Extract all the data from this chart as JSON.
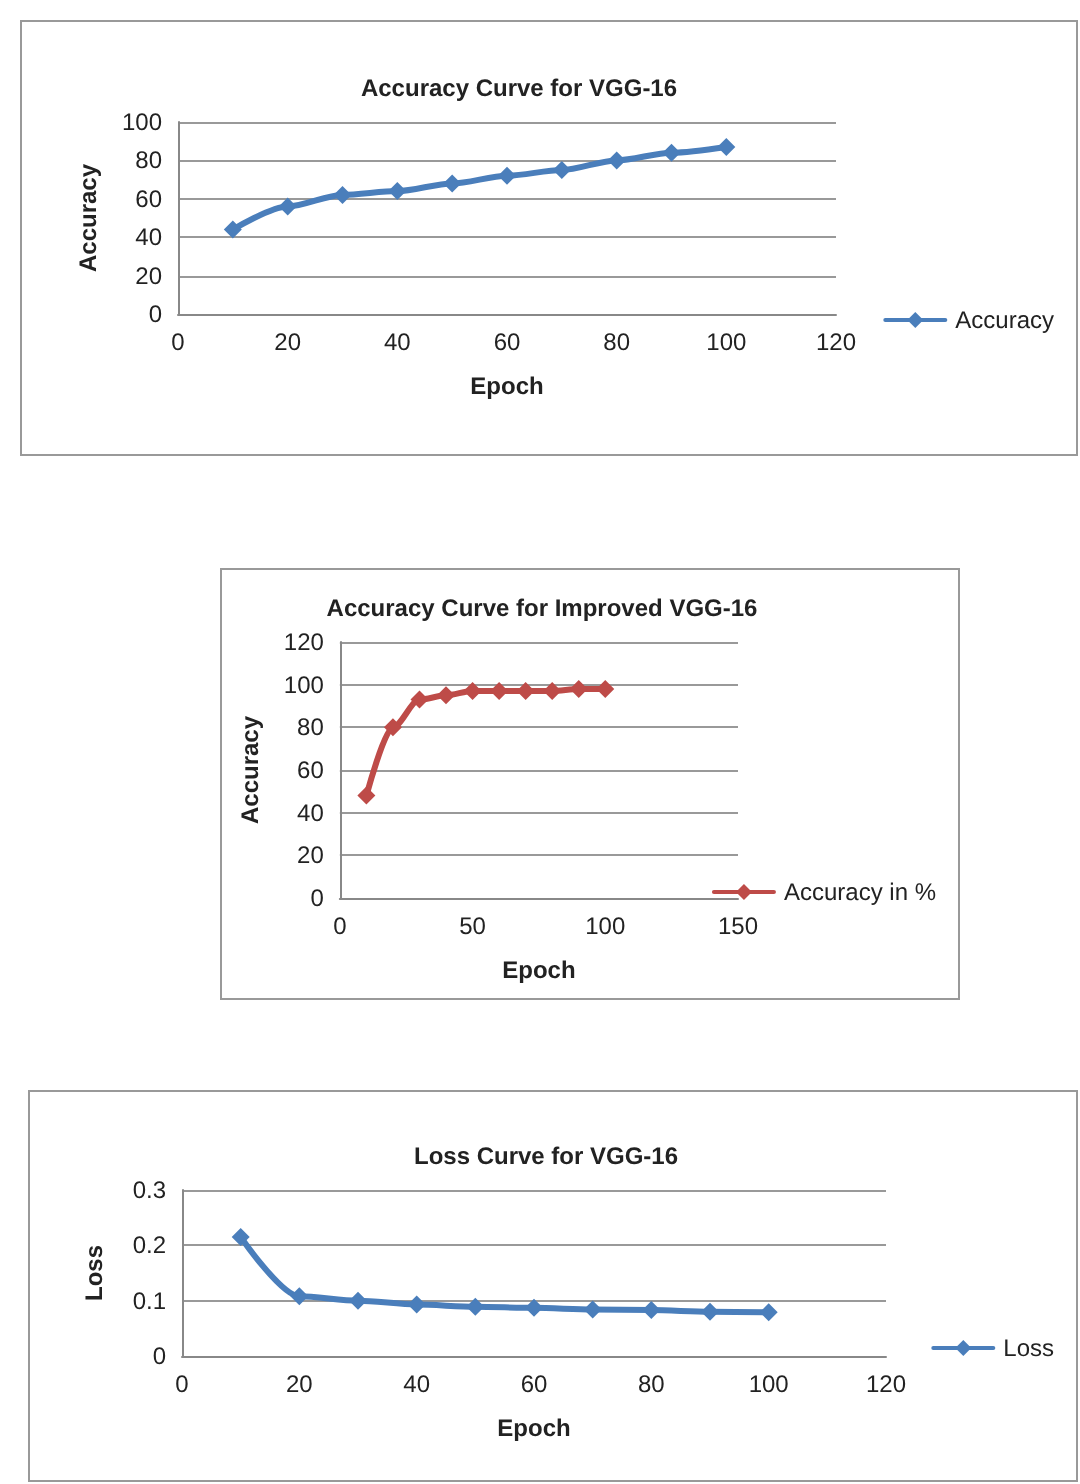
{
  "chart_data": [
    {
      "type": "line",
      "title": "Accuracy Curve for VGG-16",
      "xlabel": "Epoch",
      "ylabel": "Accuracy",
      "x": [
        10,
        20,
        30,
        40,
        50,
        60,
        70,
        80,
        90,
        100
      ],
      "series": [
        {
          "name": "Accuracy",
          "color": "#4a7ebb",
          "values": [
            44,
            56,
            62,
            64,
            68,
            72,
            75,
            80,
            84,
            87
          ]
        }
      ],
      "xlim": [
        0,
        120
      ],
      "xticks": [
        0,
        20,
        40,
        60,
        80,
        100,
        120
      ],
      "ylim": [
        0,
        100
      ],
      "yticks": [
        0,
        20,
        40,
        60,
        80,
        100
      ],
      "grid": "y",
      "legend": "right",
      "marker": "diamond",
      "line_style": "solid"
    },
    {
      "type": "line",
      "title": "Accuracy Curve for Improved VGG-16",
      "xlabel": "Epoch",
      "ylabel": "Accuracy",
      "x": [
        10,
        20,
        30,
        40,
        50,
        60,
        70,
        80,
        90,
        100
      ],
      "series": [
        {
          "name": "Accuracy in %",
          "color": "#be4b48",
          "values": [
            48,
            80,
            93,
            95,
            97,
            97,
            97,
            97,
            98,
            98
          ]
        }
      ],
      "xlim": [
        0,
        150
      ],
      "xticks": [
        0,
        50,
        100,
        150
      ],
      "ylim": [
        0,
        120
      ],
      "yticks": [
        0,
        20,
        40,
        60,
        80,
        100,
        120
      ],
      "grid": "y",
      "legend": "bottom right",
      "marker": "diamond",
      "line_style": "solid"
    },
    {
      "type": "line",
      "title": "Loss Curve for VGG-16",
      "xlabel": "Epoch",
      "ylabel": "Loss",
      "x": [
        10,
        20,
        30,
        40,
        50,
        60,
        70,
        80,
        90,
        100
      ],
      "series": [
        {
          "name": "Loss",
          "color": "#4a7ebb",
          "values": [
            0.215,
            0.108,
            0.1,
            0.093,
            0.089,
            0.087,
            0.084,
            0.083,
            0.08,
            0.079
          ]
        }
      ],
      "xlim": [
        0,
        120
      ],
      "xticks": [
        0,
        20,
        40,
        60,
        80,
        100,
        120
      ],
      "ylim": [
        0,
        0.3
      ],
      "yticks": [
        0,
        0.1,
        0.2,
        0.3
      ],
      "grid": "y",
      "legend": "right",
      "marker": "diamond",
      "line_style": "solid"
    }
  ]
}
